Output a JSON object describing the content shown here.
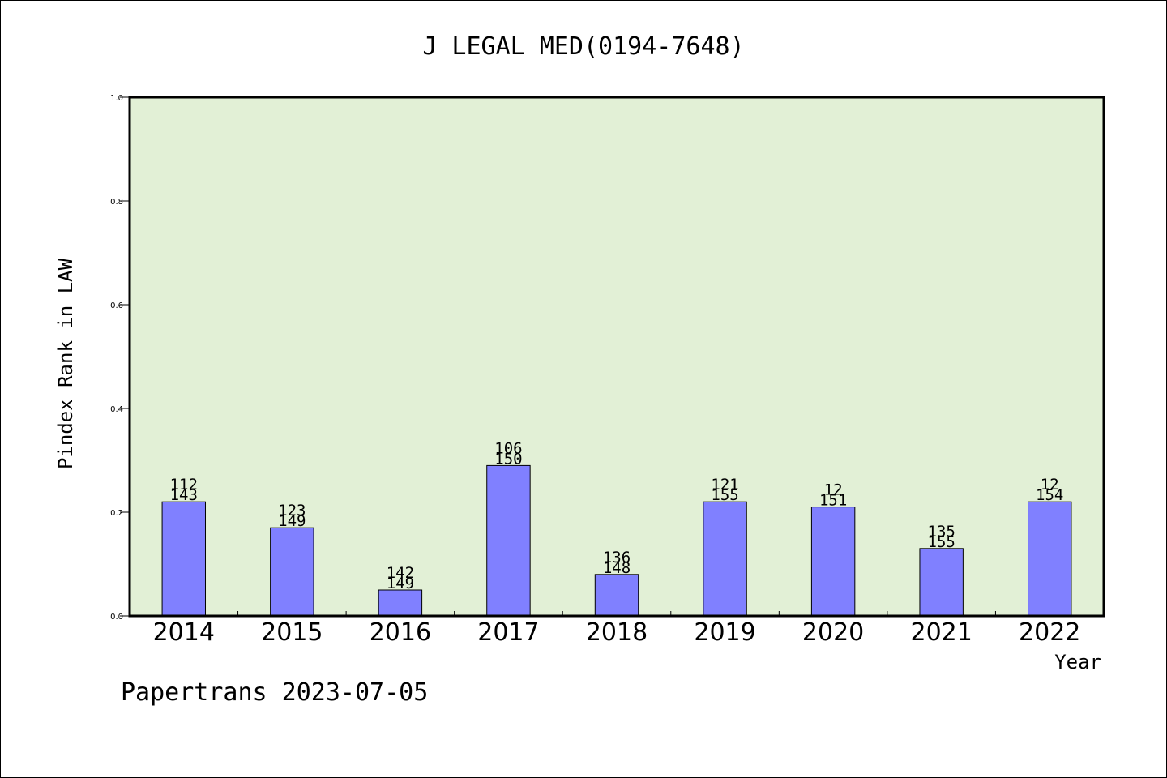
{
  "chart_data": {
    "type": "bar",
    "title": "J LEGAL MED(0194-7648)",
    "xlabel": "Year",
    "ylabel": "Pindex Rank in LAW",
    "categories": [
      "2014",
      "2015",
      "2016",
      "2017",
      "2018",
      "2019",
      "2020",
      "2021",
      "2022"
    ],
    "values": [
      0.22,
      0.17,
      0.05,
      0.29,
      0.08,
      0.22,
      0.21,
      0.13,
      0.22
    ],
    "label_top": [
      "112",
      "123",
      "142",
      "106",
      "136",
      "121",
      "12",
      "135",
      "12"
    ],
    "label_bottom": [
      "143",
      "149",
      "149",
      "150",
      "148",
      "155",
      "151",
      "155",
      "154"
    ],
    "ylim": [
      0,
      1.0
    ],
    "yticks": [
      "0.0",
      "0.2",
      "0.4",
      "0.6",
      "0.8",
      "1.0"
    ],
    "grid": false,
    "legend": "none",
    "colors": {
      "plot_bg": "#e2f0d6",
      "bar": "#8080ff",
      "bar_edge": "#000000"
    }
  },
  "footer": {
    "credit": "Papertrans 2023-07-05"
  }
}
